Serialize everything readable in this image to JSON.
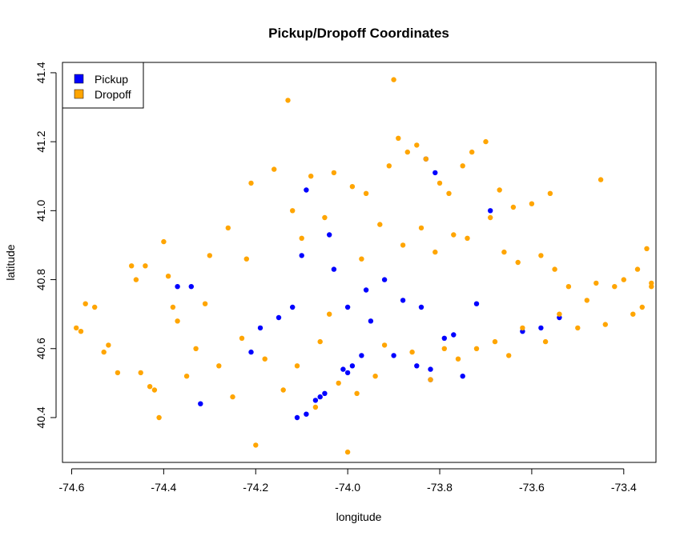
{
  "chart_data": {
    "type": "scatter",
    "title": "Pickup/Dropoff Coordinates",
    "xlabel": "longitude",
    "ylabel": "latitude",
    "xlim": [
      -74.62,
      -73.33
    ],
    "ylim": [
      40.27,
      41.43
    ],
    "x_ticks": [
      -74.6,
      -74.4,
      -74.2,
      -74.0,
      -73.8,
      -73.6,
      -73.4
    ],
    "x_tick_labels": [
      "-74.6",
      "-74.4",
      "-74.2",
      "-74.0",
      "-73.8",
      "-73.6",
      "-73.4"
    ],
    "y_ticks": [
      40.4,
      40.6,
      40.8,
      41.0,
      41.2,
      41.4
    ],
    "y_tick_labels": [
      "40.4",
      "40.6",
      "40.8",
      "41.0",
      "41.2",
      "41.4"
    ],
    "grid": false,
    "legend_position": "top-left",
    "colors": {
      "Pickup": "#0000ff",
      "Dropoff": "#ffa500"
    },
    "series": [
      {
        "name": "Pickup",
        "color": "#0000ff",
        "points": [
          [
            -74.37,
            40.78
          ],
          [
            -74.34,
            40.78
          ],
          [
            -74.32,
            40.44
          ],
          [
            -74.21,
            40.59
          ],
          [
            -74.19,
            40.66
          ],
          [
            -74.15,
            40.69
          ],
          [
            -74.1,
            40.87
          ],
          [
            -74.09,
            41.06
          ],
          [
            -74.11,
            40.4
          ],
          [
            -74.09,
            40.41
          ],
          [
            -74.07,
            40.45
          ],
          [
            -74.06,
            40.46
          ],
          [
            -74.05,
            40.47
          ],
          [
            -74.04,
            40.93
          ],
          [
            -74.03,
            40.83
          ],
          [
            -74.01,
            40.54
          ],
          [
            -74.0,
            40.53
          ],
          [
            -73.99,
            40.55
          ],
          [
            -73.97,
            40.58
          ],
          [
            -73.9,
            40.58
          ],
          [
            -73.85,
            40.55
          ],
          [
            -73.82,
            40.51
          ],
          [
            -73.82,
            40.54
          ],
          [
            -73.81,
            41.11
          ],
          [
            -73.79,
            40.63
          ],
          [
            -73.77,
            40.64
          ],
          [
            -73.75,
            40.52
          ],
          [
            -73.83,
            41.15
          ],
          [
            -73.69,
            41.0
          ],
          [
            -73.62,
            40.65
          ],
          [
            -73.58,
            40.66
          ],
          [
            -73.54,
            40.69
          ],
          [
            -73.88,
            40.74
          ],
          [
            -73.96,
            40.77
          ],
          [
            -73.92,
            40.8
          ],
          [
            -74.0,
            40.72
          ],
          [
            -73.95,
            40.68
          ],
          [
            -74.12,
            40.72
          ],
          [
            -73.84,
            40.72
          ],
          [
            -73.72,
            40.73
          ]
        ]
      },
      {
        "name": "Dropoff",
        "color": "#ffa500",
        "points": [
          [
            -74.59,
            40.66
          ],
          [
            -74.58,
            40.65
          ],
          [
            -74.57,
            40.73
          ],
          [
            -74.55,
            40.72
          ],
          [
            -74.53,
            40.59
          ],
          [
            -74.52,
            40.61
          ],
          [
            -74.5,
            40.53
          ],
          [
            -74.47,
            40.84
          ],
          [
            -74.46,
            40.8
          ],
          [
            -74.44,
            40.84
          ],
          [
            -74.45,
            40.53
          ],
          [
            -74.43,
            40.49
          ],
          [
            -74.42,
            40.48
          ],
          [
            -74.41,
            40.4
          ],
          [
            -74.4,
            40.91
          ],
          [
            -74.39,
            40.81
          ],
          [
            -74.38,
            40.72
          ],
          [
            -74.37,
            40.68
          ],
          [
            -74.35,
            40.52
          ],
          [
            -74.33,
            40.6
          ],
          [
            -74.31,
            40.73
          ],
          [
            -74.3,
            40.87
          ],
          [
            -74.28,
            40.55
          ],
          [
            -74.26,
            40.95
          ],
          [
            -74.25,
            40.46
          ],
          [
            -74.23,
            40.63
          ],
          [
            -74.21,
            41.08
          ],
          [
            -74.2,
            40.32
          ],
          [
            -74.18,
            40.57
          ],
          [
            -74.16,
            41.12
          ],
          [
            -74.14,
            40.48
          ],
          [
            -74.13,
            41.32
          ],
          [
            -74.12,
            41.0
          ],
          [
            -74.11,
            40.55
          ],
          [
            -74.1,
            40.92
          ],
          [
            -74.08,
            41.1
          ],
          [
            -74.07,
            40.43
          ],
          [
            -74.06,
            40.62
          ],
          [
            -74.05,
            40.98
          ],
          [
            -74.04,
            40.7
          ],
          [
            -74.03,
            41.11
          ],
          [
            -74.02,
            40.5
          ],
          [
            -74.0,
            40.3
          ],
          [
            -73.99,
            41.07
          ],
          [
            -73.98,
            40.47
          ],
          [
            -73.97,
            40.86
          ],
          [
            -73.96,
            41.05
          ],
          [
            -73.94,
            40.52
          ],
          [
            -73.93,
            40.96
          ],
          [
            -73.92,
            40.61
          ],
          [
            -73.91,
            41.13
          ],
          [
            -73.9,
            41.38
          ],
          [
            -73.89,
            41.21
          ],
          [
            -73.88,
            40.9
          ],
          [
            -73.87,
            41.17
          ],
          [
            -73.86,
            40.59
          ],
          [
            -73.85,
            41.19
          ],
          [
            -73.84,
            40.95
          ],
          [
            -73.83,
            41.15
          ],
          [
            -73.82,
            40.51
          ],
          [
            -73.81,
            40.88
          ],
          [
            -73.8,
            41.08
          ],
          [
            -73.79,
            40.6
          ],
          [
            -73.78,
            41.05
          ],
          [
            -73.77,
            40.93
          ],
          [
            -73.76,
            40.57
          ],
          [
            -73.75,
            41.13
          ],
          [
            -73.74,
            40.92
          ],
          [
            -73.73,
            41.17
          ],
          [
            -73.72,
            40.6
          ],
          [
            -73.7,
            41.2
          ],
          [
            -73.69,
            40.98
          ],
          [
            -73.68,
            40.62
          ],
          [
            -73.67,
            41.06
          ],
          [
            -73.66,
            40.88
          ],
          [
            -73.65,
            40.58
          ],
          [
            -73.64,
            41.01
          ],
          [
            -73.63,
            40.85
          ],
          [
            -73.62,
            40.66
          ],
          [
            -73.6,
            41.02
          ],
          [
            -73.58,
            40.87
          ],
          [
            -73.57,
            40.62
          ],
          [
            -73.56,
            41.05
          ],
          [
            -73.55,
            40.83
          ],
          [
            -73.54,
            40.7
          ],
          [
            -73.52,
            40.78
          ],
          [
            -73.5,
            40.66
          ],
          [
            -73.48,
            40.74
          ],
          [
            -73.46,
            40.79
          ],
          [
            -73.45,
            41.09
          ],
          [
            -73.44,
            40.67
          ],
          [
            -73.42,
            40.78
          ],
          [
            -73.4,
            40.8
          ],
          [
            -73.38,
            40.7
          ],
          [
            -73.37,
            40.83
          ],
          [
            -73.36,
            40.72
          ],
          [
            -73.35,
            40.89
          ],
          [
            -73.34,
            40.78
          ],
          [
            -73.34,
            40.79
          ],
          [
            -74.22,
            40.86
          ]
        ]
      }
    ]
  }
}
